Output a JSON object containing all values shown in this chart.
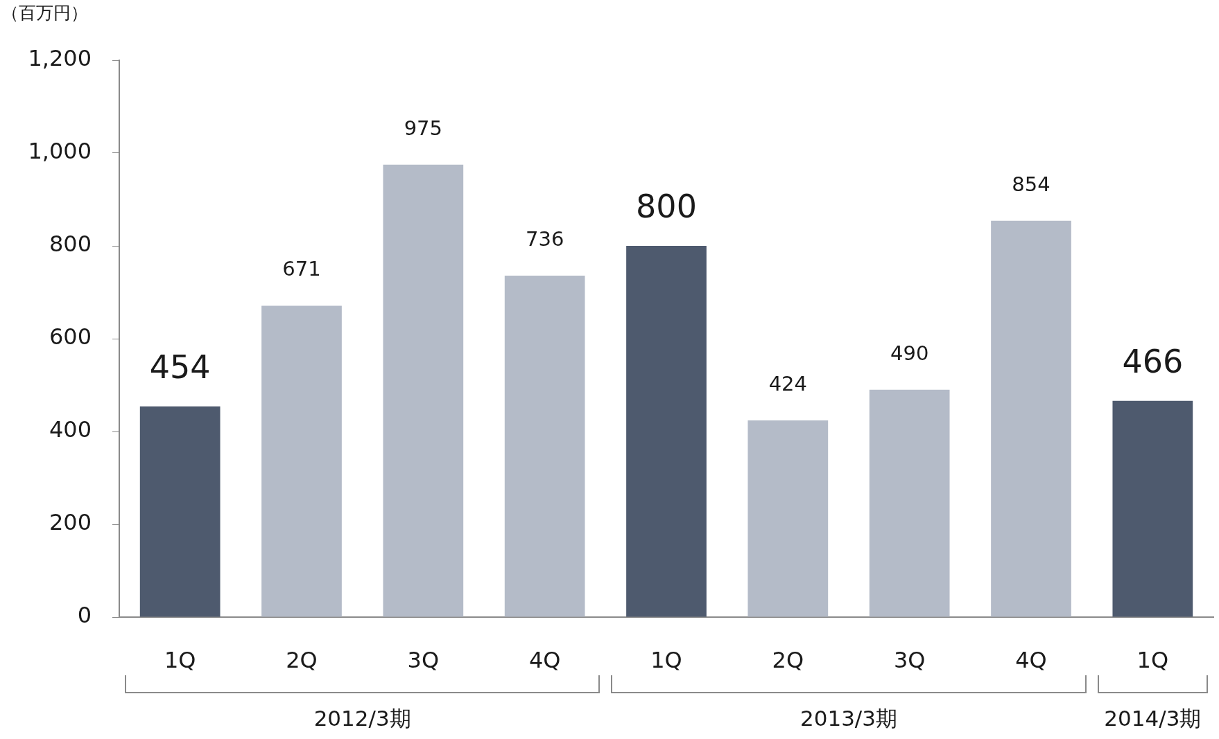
{
  "chart_data": {
    "type": "bar",
    "ylabel": "（百万円）",
    "categories": [
      "1Q",
      "2Q",
      "3Q",
      "4Q",
      "1Q",
      "2Q",
      "3Q",
      "4Q",
      "1Q"
    ],
    "values": [
      454,
      671,
      975,
      736,
      800,
      424,
      490,
      854,
      466
    ],
    "colors": [
      "#4e5a6e",
      "#b4bbc8",
      "#b4bbc8",
      "#b4bbc8",
      "#4e5a6e",
      "#b4bbc8",
      "#b4bbc8",
      "#b4bbc8",
      "#4e5a6e"
    ],
    "ylim": [
      0,
      1200
    ],
    "yticks": [
      0,
      200,
      400,
      600,
      800,
      {
        "value": 1000,
        "label": "1,000"
      },
      {
        "value": 1200,
        "label": "1,200"
      }
    ],
    "data_labels": true,
    "grid": false,
    "legend": false,
    "annotations": [
      "2012/3期",
      "2013/3期",
      "2014/3期"
    ]
  }
}
